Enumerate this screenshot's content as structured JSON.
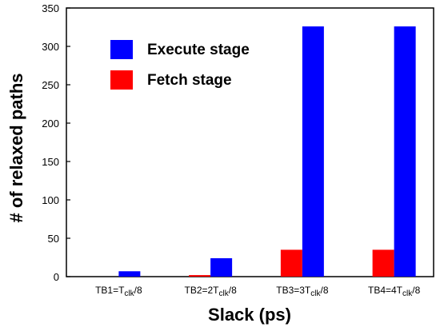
{
  "chart_data": {
    "type": "bar",
    "categories": [
      {
        "prefix": "TB1=T",
        "sub": "clk",
        "suffix": "/8"
      },
      {
        "prefix": "TB2=2T",
        "sub": "clk",
        "suffix": "/8"
      },
      {
        "prefix": "TB3=3T",
        "sub": "clk",
        "suffix": "/8"
      },
      {
        "prefix": "TB4=4T",
        "sub": "clk",
        "suffix": "/8"
      }
    ],
    "series": [
      {
        "name": "Fetch stage",
        "color": "#ff0000",
        "values": [
          0,
          2,
          35,
          35
        ]
      },
      {
        "name": "Execute stage",
        "color": "#0000ff",
        "values": [
          7,
          24,
          326,
          326
        ]
      }
    ],
    "legend_order": [
      "Execute stage",
      "Fetch stage"
    ],
    "xlabel": "Slack (ps)",
    "ylabel": "# of relaxed paths",
    "ylim": [
      0,
      350
    ],
    "yticks": [
      0,
      50,
      100,
      150,
      200,
      250,
      300,
      350
    ],
    "grid": false,
    "legend_position": "top-left"
  }
}
